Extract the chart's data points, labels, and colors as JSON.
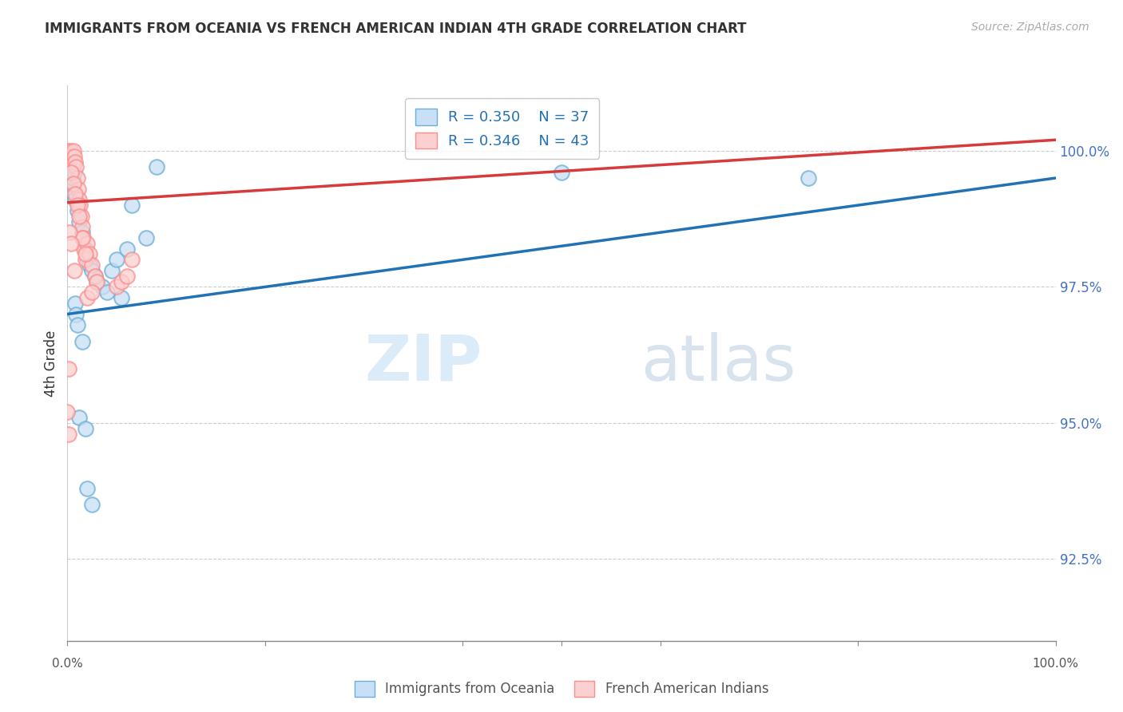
{
  "title": "IMMIGRANTS FROM OCEANIA VS FRENCH AMERICAN INDIAN 4TH GRADE CORRELATION CHART",
  "source": "Source: ZipAtlas.com",
  "ylabel": "4th Grade",
  "y_ticks": [
    92.5,
    95.0,
    97.5,
    100.0
  ],
  "y_tick_labels": [
    "92.5%",
    "95.0%",
    "97.5%",
    "100.0%"
  ],
  "xlim": [
    0.0,
    1.0
  ],
  "ylim": [
    91.0,
    101.2
  ],
  "legend_r_blue": "R = 0.350",
  "legend_n_blue": "N = 37",
  "legend_r_pink": "R = 0.346",
  "legend_n_pink": "N = 43",
  "blue_color": "#6baed6",
  "pink_color": "#fc8d8d",
  "blue_line_color": "#2171b5",
  "pink_line_color": "#d63a3a",
  "blue_scatter": [
    [
      0.0,
      99.5
    ],
    [
      0.001,
      99.6
    ],
    [
      0.002,
      99.4
    ],
    [
      0.003,
      99.7
    ],
    [
      0.004,
      99.3
    ],
    [
      0.005,
      99.5
    ],
    [
      0.006,
      99.2
    ],
    [
      0.007,
      99.6
    ],
    [
      0.008,
      99.1
    ],
    [
      0.01,
      98.9
    ],
    [
      0.012,
      98.7
    ],
    [
      0.015,
      98.5
    ],
    [
      0.018,
      98.2
    ],
    [
      0.02,
      98.0
    ],
    [
      0.022,
      97.9
    ],
    [
      0.025,
      97.8
    ],
    [
      0.028,
      97.7
    ],
    [
      0.03,
      97.6
    ],
    [
      0.035,
      97.5
    ],
    [
      0.04,
      97.4
    ],
    [
      0.045,
      97.8
    ],
    [
      0.05,
      98.0
    ],
    [
      0.055,
      97.3
    ],
    [
      0.06,
      98.2
    ],
    [
      0.065,
      99.0
    ],
    [
      0.008,
      97.2
    ],
    [
      0.009,
      97.0
    ],
    [
      0.01,
      96.8
    ],
    [
      0.015,
      96.5
    ],
    [
      0.012,
      95.1
    ],
    [
      0.018,
      94.9
    ],
    [
      0.02,
      93.8
    ],
    [
      0.025,
      93.5
    ],
    [
      0.5,
      99.6
    ],
    [
      0.75,
      99.5
    ],
    [
      0.08,
      98.4
    ],
    [
      0.09,
      99.7
    ]
  ],
  "pink_scatter": [
    [
      0.0,
      100.0
    ],
    [
      0.001,
      99.9
    ],
    [
      0.002,
      99.8
    ],
    [
      0.003,
      100.0
    ],
    [
      0.004,
      99.9
    ],
    [
      0.005,
      99.8
    ],
    [
      0.006,
      100.0
    ],
    [
      0.007,
      99.9
    ],
    [
      0.008,
      99.8
    ],
    [
      0.009,
      99.7
    ],
    [
      0.01,
      99.5
    ],
    [
      0.011,
      99.3
    ],
    [
      0.012,
      99.1
    ],
    [
      0.013,
      99.0
    ],
    [
      0.014,
      98.8
    ],
    [
      0.015,
      98.6
    ],
    [
      0.016,
      98.4
    ],
    [
      0.017,
      98.2
    ],
    [
      0.018,
      98.0
    ],
    [
      0.02,
      98.3
    ],
    [
      0.022,
      98.1
    ],
    [
      0.025,
      97.9
    ],
    [
      0.028,
      97.7
    ],
    [
      0.03,
      97.6
    ],
    [
      0.004,
      99.6
    ],
    [
      0.006,
      99.4
    ],
    [
      0.008,
      99.2
    ],
    [
      0.01,
      99.0
    ],
    [
      0.012,
      98.8
    ],
    [
      0.015,
      98.4
    ],
    [
      0.018,
      98.1
    ],
    [
      0.02,
      97.3
    ],
    [
      0.025,
      97.4
    ],
    [
      0.002,
      98.5
    ],
    [
      0.004,
      98.3
    ],
    [
      0.007,
      97.8
    ],
    [
      0.05,
      97.5
    ],
    [
      0.055,
      97.6
    ],
    [
      0.06,
      97.7
    ],
    [
      0.065,
      98.0
    ],
    [
      0.001,
      94.8
    ],
    [
      0.0,
      95.2
    ],
    [
      0.001,
      96.0
    ]
  ],
  "blue_trend_x": [
    0.0,
    1.0
  ],
  "blue_trend_y": [
    97.0,
    99.5
  ],
  "pink_trend_x": [
    0.0,
    1.0
  ],
  "pink_trend_y": [
    99.05,
    100.2
  ],
  "watermark_zip": "ZIP",
  "watermark_atlas": "atlas",
  "background_color": "#ffffff",
  "grid_color": "#cccccc",
  "tick_color": "#4472c4",
  "legend_label_blue": "Immigrants from Oceania",
  "legend_label_pink": "French American Indians"
}
